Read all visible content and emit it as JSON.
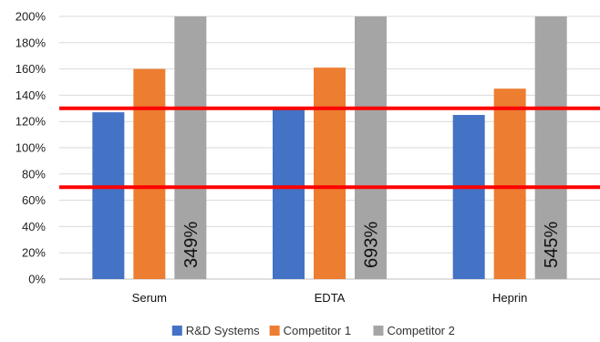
{
  "chart_data": {
    "type": "bar",
    "categories": [
      "Serum",
      "EDTA",
      "Heprin"
    ],
    "series": [
      {
        "name": "R&D Systems",
        "color": "#4472C4",
        "values": [
          127,
          131,
          125
        ]
      },
      {
        "name": "Competitor 1",
        "color": "#ED7D31",
        "values": [
          160,
          161,
          145
        ]
      },
      {
        "name": "Competitor 2",
        "color": "#A5A5A5",
        "values": [
          349,
          693,
          545
        ]
      }
    ],
    "data_labels": {
      "series_index": 2,
      "labels": [
        "349%",
        "693%",
        "545%"
      ]
    },
    "reference_lines": [
      {
        "value": 130,
        "color": "#FF0000"
      },
      {
        "value": 70,
        "color": "#FF0000"
      }
    ],
    "ylim": [
      0,
      200
    ],
    "yticks": [
      "0%",
      "20%",
      "40%",
      "60%",
      "80%",
      "100%",
      "120%",
      "140%",
      "160%",
      "180%",
      "200%"
    ],
    "grid": true,
    "legend_position": "bottom",
    "title": "",
    "xlabel": "",
    "ylabel": ""
  }
}
